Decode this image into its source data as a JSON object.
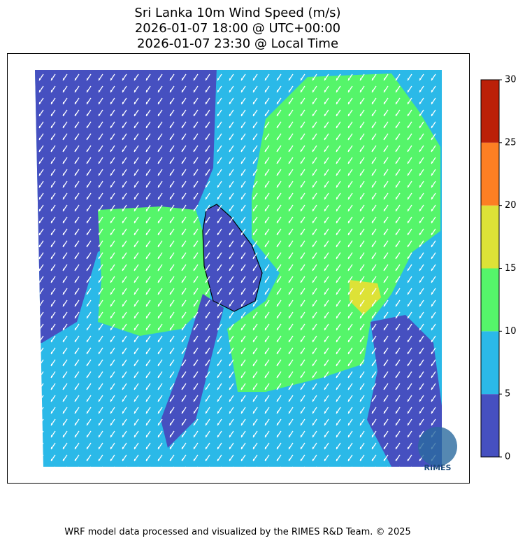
{
  "title": [
    "Sri Lanka 10m Wind Speed (m/s)",
    "2026-01-07 18:00 @ UTC+00:00",
    "2026-01-07 23:30 @ Local Time"
  ],
  "colorbar": {
    "ticks": [
      0,
      5,
      10,
      15,
      20,
      25,
      30
    ],
    "colors": [
      "#4650c0",
      "#2bb9e8",
      "#55f56a",
      "#dde237",
      "#fd7f23",
      "#bb2008"
    ]
  },
  "logo": "RIMES",
  "footer": "WRF model data processed and visualized by the RIMES R&D Team. © 2025"
}
